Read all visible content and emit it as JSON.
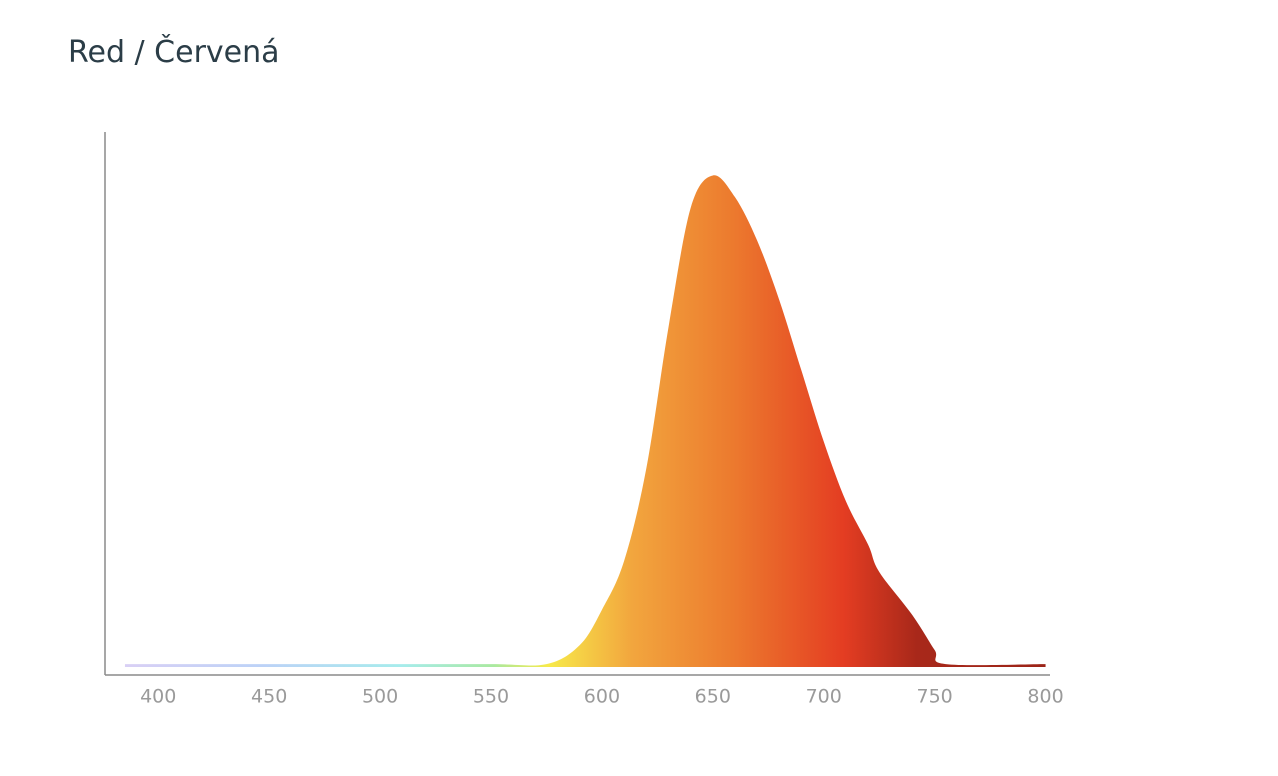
{
  "chart_data": {
    "type": "area",
    "title": "Red / Červená",
    "x": [
      385,
      400,
      450,
      500,
      550,
      575,
      590,
      600,
      610,
      620,
      630,
      640,
      650,
      660,
      670,
      680,
      690,
      700,
      710,
      720,
      725,
      740,
      750,
      755,
      800
    ],
    "values": [
      2,
      2,
      2,
      2,
      2,
      2,
      5.5,
      12,
      21,
      38,
      64,
      86,
      92,
      88,
      80,
      69,
      56,
      43,
      32,
      24,
      19,
      11,
      4.6,
      2,
      2
    ],
    "xlim": [
      376,
      802
    ],
    "ylim": [
      0,
      100
    ],
    "xticks": [
      400,
      450,
      500,
      550,
      600,
      650,
      700,
      750,
      800
    ]
  }
}
